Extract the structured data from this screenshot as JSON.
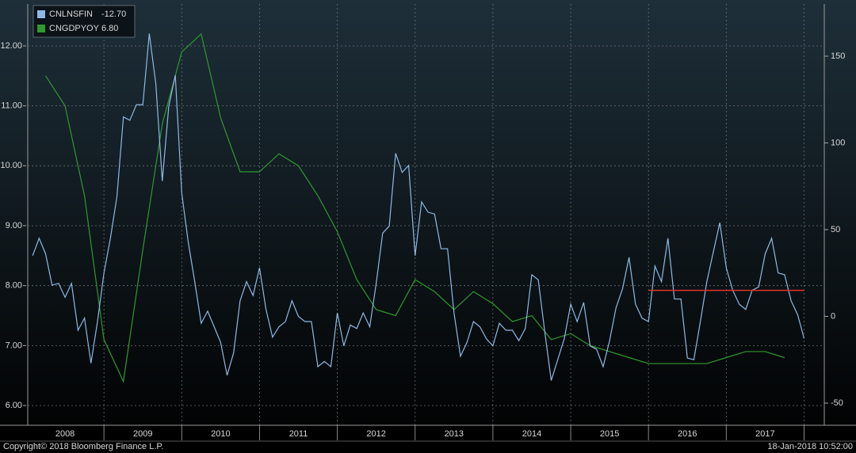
{
  "chart_data": {
    "type": "line",
    "series": [
      {
        "name": "CNLNSFIN",
        "legend_value": "-12.70",
        "color": "#8fb9e4",
        "axis": "y2",
        "x": [
          2008.083,
          2008.167,
          2008.25,
          2008.333,
          2008.417,
          2008.5,
          2008.583,
          2008.667,
          2008.75,
          2008.833,
          2008.917,
          2009,
          2009.083,
          2009.167,
          2009.25,
          2009.333,
          2009.417,
          2009.5,
          2009.583,
          2009.667,
          2009.75,
          2009.833,
          2009.917,
          2010,
          2010.083,
          2010.167,
          2010.25,
          2010.333,
          2010.417,
          2010.5,
          2010.583,
          2010.667,
          2010.75,
          2010.833,
          2010.917,
          2011,
          2011.083,
          2011.167,
          2011.25,
          2011.333,
          2011.417,
          2011.5,
          2011.583,
          2011.667,
          2011.75,
          2011.833,
          2011.917,
          2012,
          2012.083,
          2012.167,
          2012.25,
          2012.333,
          2012.417,
          2012.5,
          2012.583,
          2012.667,
          2012.75,
          2012.833,
          2012.917,
          2013,
          2013.083,
          2013.167,
          2013.25,
          2013.333,
          2013.417,
          2013.5,
          2013.583,
          2013.667,
          2013.75,
          2013.833,
          2013.917,
          2014,
          2014.083,
          2014.167,
          2014.25,
          2014.333,
          2014.417,
          2014.5,
          2014.583,
          2014.667,
          2014.75,
          2014.833,
          2014.917,
          2015,
          2015.083,
          2015.167,
          2015.25,
          2015.333,
          2015.417,
          2015.5,
          2015.583,
          2015.667,
          2015.75,
          2015.833,
          2015.917,
          2016,
          2016.083,
          2016.167,
          2016.25,
          2016.333,
          2016.417,
          2016.5,
          2016.583,
          2016.667,
          2016.75,
          2016.833,
          2016.917,
          2017,
          2017.083,
          2017.167,
          2017.25,
          2017.333,
          2017.417,
          2017.5,
          2017.583,
          2017.667,
          2017.75,
          2017.833,
          2017.917,
          2018
        ],
        "values": [
          35,
          45,
          36,
          18,
          19,
          11,
          19,
          -8,
          -1,
          -27,
          -3,
          25,
          45,
          69,
          115,
          113,
          122,
          122,
          163,
          134,
          78,
          121,
          139,
          71,
          43,
          20,
          -4,
          3,
          -6,
          -15,
          -34,
          -21,
          9,
          20,
          12,
          28,
          4,
          -12,
          -6,
          -3,
          9,
          0,
          -3,
          -3,
          -29,
          -26,
          -29,
          2,
          -17,
          -5,
          -7,
          2,
          -6,
          19,
          48,
          52,
          94,
          83,
          87,
          35,
          66,
          60,
          59,
          39,
          39,
          2,
          -23,
          -15,
          -3,
          -6,
          -13,
          -17,
          -4,
          -8,
          -8,
          -14,
          -7,
          24,
          21,
          -9,
          -37,
          -25,
          -13,
          7,
          -3,
          8,
          -17,
          -19,
          -29,
          -14,
          5,
          16,
          34,
          7,
          -1,
          -3,
          29,
          20,
          45,
          10,
          10,
          -24,
          -25,
          -3,
          20,
          37,
          54,
          28,
          15,
          7,
          4,
          15,
          17,
          36,
          45,
          25,
          24,
          9,
          1,
          -12.7
        ]
      },
      {
        "name": "CNGDPYOY",
        "legend_value": "6.80",
        "color": "#2e9a2e",
        "axis": "y",
        "x": [
          2008.25,
          2008.5,
          2008.75,
          2009,
          2009.25,
          2009.5,
          2009.75,
          2010,
          2010.25,
          2010.5,
          2010.75,
          2011,
          2011.25,
          2011.5,
          2011.75,
          2012,
          2012.25,
          2012.5,
          2012.75,
          2013,
          2013.25,
          2013.5,
          2013.75,
          2014,
          2014.25,
          2014.5,
          2014.75,
          2015,
          2015.25,
          2015.5,
          2015.75,
          2016,
          2016.25,
          2016.5,
          2016.75,
          2017,
          2017.25,
          2017.5,
          2017.75
        ],
        "values": [
          11.5,
          11.0,
          9.5,
          7.1,
          6.4,
          8.6,
          10.7,
          11.9,
          12.2,
          10.8,
          9.9,
          9.9,
          10.2,
          10.0,
          9.5,
          8.9,
          8.1,
          7.6,
          7.5,
          8.1,
          7.9,
          7.6,
          7.9,
          7.7,
          7.4,
          7.5,
          7.1,
          7.2,
          7.0,
          6.9,
          6.8,
          6.7,
          6.7,
          6.7,
          6.7,
          6.8,
          6.9,
          6.9,
          6.8
        ]
      }
    ],
    "reference_line": {
      "value": 15,
      "axis": "y2",
      "x": [
        2016,
        2018
      ],
      "color": "#e0342c"
    },
    "xlim": [
      2008,
      2018.26
    ],
    "xticks": [
      {
        "value": 2008.5,
        "label": "2008"
      },
      {
        "value": 2009.5,
        "label": "2009"
      },
      {
        "value": 2010.5,
        "label": "2010"
      },
      {
        "value": 2011.5,
        "label": "2011"
      },
      {
        "value": 2012.5,
        "label": "2012"
      },
      {
        "value": 2013.5,
        "label": "2013"
      },
      {
        "value": 2014.5,
        "label": "2014"
      },
      {
        "value": 2015.5,
        "label": "2015"
      },
      {
        "value": 2016.5,
        "label": "2016"
      },
      {
        "value": 2017.5,
        "label": "2017"
      }
    ],
    "x_dividers": [
      2009,
      2010,
      2011,
      2012,
      2013,
      2014,
      2015,
      2016,
      2017,
      2018
    ],
    "ylim": [
      5.67,
      12.7
    ],
    "yticks": [
      {
        "value": 6,
        "label": "6.00"
      },
      {
        "value": 7,
        "label": "7.00"
      },
      {
        "value": 8,
        "label": "8.00"
      },
      {
        "value": 9,
        "label": "9.00"
      },
      {
        "value": 10,
        "label": "10.00"
      },
      {
        "value": 11,
        "label": "11.00"
      },
      {
        "value": 12,
        "label": "12.00"
      }
    ],
    "y2lim": [
      -62.8,
      180.1
    ],
    "y2ticks": [
      -50,
      0,
      50,
      100,
      150
    ],
    "grid": true,
    "legend": "upper left",
    "copyright": "Copyright© 2018 Bloomberg Finance L.P.",
    "timestamp": "18-Jan-2018 10:52:00"
  }
}
